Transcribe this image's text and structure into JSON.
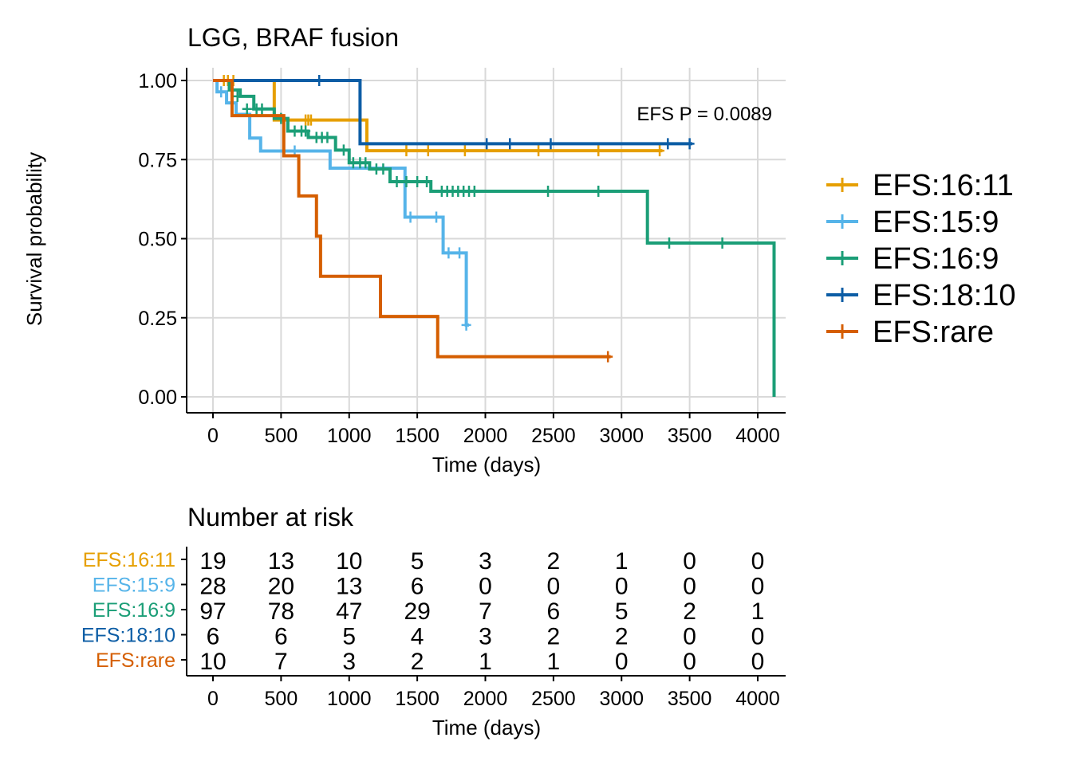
{
  "chart_data": {
    "type": "line",
    "subtype": "kaplan-meier",
    "title": "LGG, BRAF fusion",
    "xlabel": "Time (days)",
    "ylabel": "Survival probability",
    "xlim": [
      0,
      4100
    ],
    "ylim": [
      0,
      1
    ],
    "x_ticks": [
      "0",
      "500",
      "1000",
      "1500",
      "2000",
      "2500",
      "3000",
      "3500",
      "4000"
    ],
    "y_ticks": [
      "0.00",
      "0.25",
      "0.50",
      "0.75",
      "1.00"
    ],
    "grid": true,
    "legend_position": "right",
    "annotation": "EFS P = 0.0089",
    "series": [
      {
        "name": "EFS:16:11",
        "color": "#E69F00",
        "steps": [
          [
            0,
            1.0
          ],
          [
            450,
            0.875
          ],
          [
            1130,
            0.778
          ]
        ],
        "end": 3300,
        "censors": [
          [
            80,
            1.0
          ],
          [
            110,
            1.0
          ],
          [
            150,
            1.0
          ],
          [
            680,
            0.875
          ],
          [
            700,
            0.875
          ],
          [
            720,
            0.875
          ],
          [
            1420,
            0.778
          ],
          [
            1580,
            0.778
          ],
          [
            1850,
            0.778
          ],
          [
            2390,
            0.778
          ],
          [
            2830,
            0.778
          ],
          [
            3280,
            0.778
          ]
        ]
      },
      {
        "name": "EFS:15:9",
        "color": "#56B4E9",
        "steps": [
          [
            0,
            1.0
          ],
          [
            30,
            0.964
          ],
          [
            100,
            0.929
          ],
          [
            170,
            0.893
          ],
          [
            270,
            0.818
          ],
          [
            350,
            0.777
          ],
          [
            860,
            0.723
          ],
          [
            1410,
            0.568
          ],
          [
            1690,
            0.455
          ],
          [
            1860,
            0.227
          ]
        ],
        "end": 1880,
        "censors": [
          [
            60,
            0.964
          ],
          [
            600,
            0.777
          ],
          [
            1450,
            0.568
          ],
          [
            1640,
            0.568
          ],
          [
            1730,
            0.455
          ],
          [
            1810,
            0.455
          ],
          [
            1860,
            0.227
          ]
        ]
      },
      {
        "name": "EFS:16:9",
        "color": "#1B9E77",
        "steps": [
          [
            0,
            1.0
          ],
          [
            120,
            0.97
          ],
          [
            200,
            0.95
          ],
          [
            300,
            0.91
          ],
          [
            450,
            0.88
          ],
          [
            550,
            0.84
          ],
          [
            700,
            0.82
          ],
          [
            900,
            0.78
          ],
          [
            1000,
            0.74
          ],
          [
            1150,
            0.72
          ],
          [
            1300,
            0.68
          ],
          [
            1600,
            0.65
          ],
          [
            3190,
            0.486
          ],
          [
            4120,
            0.0
          ]
        ],
        "end": 4120,
        "censors": [
          [
            180,
            0.95
          ],
          [
            250,
            0.91
          ],
          [
            320,
            0.91
          ],
          [
            360,
            0.91
          ],
          [
            500,
            0.88
          ],
          [
            600,
            0.84
          ],
          [
            650,
            0.84
          ],
          [
            680,
            0.84
          ],
          [
            760,
            0.82
          ],
          [
            800,
            0.82
          ],
          [
            840,
            0.82
          ],
          [
            960,
            0.78
          ],
          [
            1030,
            0.74
          ],
          [
            1080,
            0.74
          ],
          [
            1120,
            0.74
          ],
          [
            1200,
            0.72
          ],
          [
            1250,
            0.72
          ],
          [
            1350,
            0.68
          ],
          [
            1420,
            0.68
          ],
          [
            1500,
            0.68
          ],
          [
            1570,
            0.68
          ],
          [
            1680,
            0.65
          ],
          [
            1720,
            0.65
          ],
          [
            1760,
            0.65
          ],
          [
            1800,
            0.65
          ],
          [
            1840,
            0.65
          ],
          [
            1880,
            0.65
          ],
          [
            1920,
            0.65
          ],
          [
            2460,
            0.65
          ],
          [
            2830,
            0.65
          ],
          [
            3350,
            0.486
          ],
          [
            3740,
            0.486
          ]
        ]
      },
      {
        "name": "EFS:18:10",
        "color": "#0C5DA5",
        "steps": [
          [
            0,
            1.0
          ],
          [
            1080,
            0.8
          ]
        ],
        "end": 3520,
        "censors": [
          [
            780,
            1.0
          ],
          [
            2010,
            0.8
          ],
          [
            2180,
            0.8
          ],
          [
            2480,
            0.8
          ],
          [
            3340,
            0.8
          ],
          [
            3500,
            0.8
          ]
        ]
      },
      {
        "name": "EFS:rare",
        "color": "#D55E00",
        "steps": [
          [
            0,
            1.0
          ],
          [
            140,
            0.889
          ],
          [
            520,
            0.762
          ],
          [
            630,
            0.635
          ],
          [
            760,
            0.508
          ],
          [
            790,
            0.381
          ],
          [
            1230,
            0.254
          ],
          [
            1650,
            0.127
          ]
        ],
        "end": 2920,
        "censors": [
          [
            2900,
            0.127
          ]
        ]
      }
    ],
    "risk_table": {
      "title": "Number at risk",
      "xlabel": "Time (days)",
      "times": [
        0,
        500,
        1000,
        1500,
        2000,
        2500,
        3000,
        3500,
        4000
      ],
      "rows": [
        {
          "name": "EFS:16:11",
          "counts": [
            "19",
            "13",
            "10",
            "5",
            "3",
            "2",
            "1",
            "0",
            "0"
          ]
        },
        {
          "name": "EFS:15:9",
          "counts": [
            "28",
            "20",
            "13",
            "6",
            "0",
            "0",
            "0",
            "0",
            "0"
          ]
        },
        {
          "name": "EFS:16:9",
          "counts": [
            "97",
            "78",
            "47",
            "29",
            "7",
            "6",
            "5",
            "2",
            "1"
          ]
        },
        {
          "name": "EFS:18:10",
          "counts": [
            "6",
            "6",
            "5",
            "4",
            "3",
            "2",
            "2",
            "0",
            "0"
          ]
        },
        {
          "name": "EFS:rare",
          "counts": [
            "10",
            "7",
            "3",
            "2",
            "1",
            "1",
            "0",
            "0",
            "0"
          ]
        }
      ]
    }
  }
}
